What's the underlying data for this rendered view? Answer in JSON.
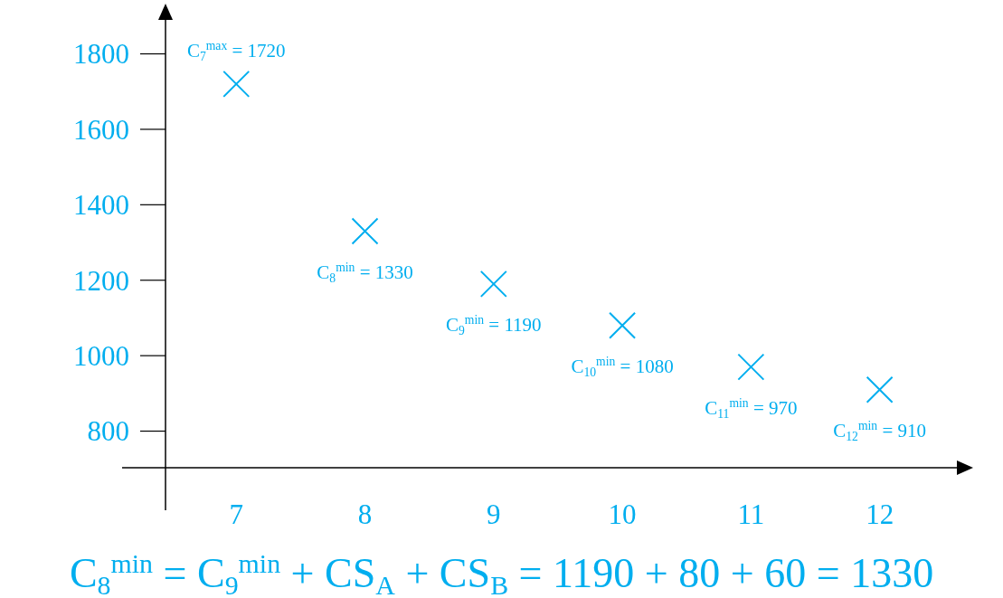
{
  "chart_data": {
    "type": "scatter",
    "x": [
      7,
      8,
      9,
      10,
      11,
      12
    ],
    "series": [
      {
        "color": "#00aeef",
        "values": [
          1720,
          1330,
          1190,
          1080,
          970,
          910
        ]
      }
    ],
    "marker": "cross",
    "grid": false,
    "xlim": [
      6.45,
      12.6
    ],
    "ylim": [
      703,
      1890
    ],
    "xticks": [
      7,
      8,
      9,
      10,
      11,
      12
    ],
    "yticks": [
      800,
      1000,
      1200,
      1400,
      1600,
      1800
    ],
    "annotations": [
      {
        "text": "C$_{7}$$^{max}$ = 1720",
        "x": 7,
        "y": 1720
      },
      {
        "text": "C$_{8}$$^{min}$ = 1330",
        "x": 8,
        "y": 1330
      },
      {
        "text": "C$_{9}$$^{min}$ = 1190",
        "x": 9,
        "y": 1190
      },
      {
        "text": "C$_{10}$$^{min}$ = 1080",
        "x": 10,
        "y": 1080
      },
      {
        "text": "C$_{11}$$^{min}$ = 970",
        "x": 11,
        "y": 970
      },
      {
        "text": "C$_{12}$$^{min}$ = 910",
        "x": 12,
        "y": 910
      },
      "C$_{8}$$^{min}$ = C$_{9}$$^{min}$ + CS$_{A}$ + CS$_{B}$ = 1190 + 80 + 60 = 1330"
    ]
  }
}
